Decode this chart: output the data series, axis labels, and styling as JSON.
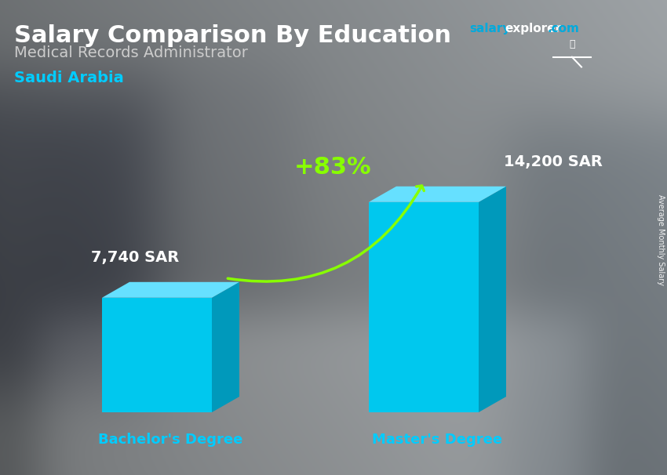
{
  "title": "Salary Comparison By Education",
  "subtitle": "Medical Records Administrator",
  "country": "Saudi Arabia",
  "categories": [
    "Bachelor's Degree",
    "Master's Degree"
  ],
  "values": [
    7740,
    14200
  ],
  "labels": [
    "7,740 SAR",
    "14,200 SAR"
  ],
  "pct_change": "+83%",
  "bar_color_front": "#00C8EE",
  "bar_color_side": "#0099BB",
  "bar_color_top": "#66E0FF",
  "arrow_color": "#88FF00",
  "title_color": "#FFFFFF",
  "subtitle_color": "#CCCCCC",
  "country_color": "#00CCFF",
  "xlabel_color": "#00CCFF",
  "value_label_color": "#FFFFFF",
  "site_salary_color": "#00AADD",
  "site_explorer_color": "#FFFFFF",
  "site_com_color": "#00AADD",
  "flag_color": "#2D8A4E",
  "ylabel_text": "Average Monthly Salary",
  "bg_color": "#808080",
  "ylim": [
    0,
    18000
  ]
}
